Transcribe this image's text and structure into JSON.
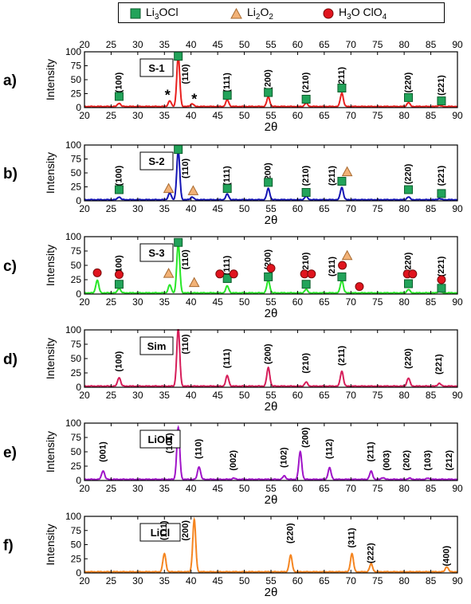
{
  "legend": {
    "items": [
      {
        "pre": "Li",
        "sub": "3",
        "post": "OCl",
        "marker": "square",
        "color": "#22a35a"
      },
      {
        "pre": "Li",
        "sub": "2",
        "post": "O",
        "sub2": "2",
        "marker": "triangle",
        "color": "#f2b277"
      },
      {
        "pre": "H",
        "sub": "3",
        "post": "O ClO",
        "sub2": "4",
        "marker": "circle",
        "color": "#e0141e"
      }
    ]
  },
  "chart_data": [
    {
      "type": "line",
      "panel_label": "a)",
      "sample_label": "S-1",
      "color": "#e8201e",
      "xlabel": "2θ",
      "ylabel": "Intensity",
      "xlim": [
        20,
        90
      ],
      "ylim": [
        0,
        100
      ],
      "xticks": [
        20,
        25,
        30,
        35,
        40,
        45,
        50,
        55,
        60,
        65,
        70,
        75,
        80,
        85,
        90
      ],
      "yticks": [
        0,
        25,
        50,
        75,
        100
      ],
      "top_axis": true,
      "peaks": [
        {
          "x": 26.5,
          "y": 6
        },
        {
          "x": 36.0,
          "y": 10
        },
        {
          "x": 37.6,
          "y": 90
        },
        {
          "x": 40.2,
          "y": 5
        },
        {
          "x": 46.8,
          "y": 12
        },
        {
          "x": 54.5,
          "y": 17
        },
        {
          "x": 61.6,
          "y": 6
        },
        {
          "x": 68.3,
          "y": 24
        },
        {
          "x": 80.8,
          "y": 7
        },
        {
          "x": 86.6,
          "y": 2
        }
      ],
      "labels": [
        {
          "x": 26.5,
          "y": 45,
          "text": "(100)"
        },
        {
          "x": 39.0,
          "y": 60,
          "text": "(110)"
        },
        {
          "x": 46.8,
          "y": 45,
          "text": "(111)"
        },
        {
          "x": 54.5,
          "y": 50,
          "text": "(200)"
        },
        {
          "x": 61.6,
          "y": 45,
          "text": "(210)"
        },
        {
          "x": 68.3,
          "y": 55,
          "text": "(211)"
        },
        {
          "x": 80.8,
          "y": 45,
          "text": "(220)"
        },
        {
          "x": 87.0,
          "y": 40,
          "text": "(221)"
        }
      ],
      "markers": [
        {
          "type": "square",
          "x": 26.5,
          "y": 20
        },
        {
          "type": "square",
          "x": 37.6,
          "y": 92
        },
        {
          "type": "square",
          "x": 46.8,
          "y": 22
        },
        {
          "type": "square",
          "x": 54.5,
          "y": 27
        },
        {
          "type": "square",
          "x": 61.6,
          "y": 15
        },
        {
          "type": "square",
          "x": 68.3,
          "y": 35
        },
        {
          "type": "square",
          "x": 80.8,
          "y": 18
        },
        {
          "type": "square",
          "x": 87.0,
          "y": 12
        }
      ],
      "annotations": [
        {
          "x": 35.6,
          "y": 22,
          "text": "*"
        },
        {
          "x": 40.6,
          "y": 15,
          "text": "*"
        }
      ]
    },
    {
      "type": "line",
      "panel_label": "b)",
      "sample_label": "S-2",
      "color": "#1414b4",
      "xlabel": "2θ",
      "ylabel": "Intensity",
      "xlim": [
        20,
        90
      ],
      "ylim": [
        0,
        100
      ],
      "xticks": [
        20,
        25,
        30,
        35,
        40,
        45,
        50,
        55,
        60,
        65,
        70,
        75,
        80,
        85,
        90
      ],
      "yticks": [
        0,
        25,
        50,
        75,
        100
      ],
      "top_axis": false,
      "peaks": [
        {
          "x": 26.5,
          "y": 5
        },
        {
          "x": 36.0,
          "y": 12
        },
        {
          "x": 37.6,
          "y": 88
        },
        {
          "x": 40.2,
          "y": 5
        },
        {
          "x": 46.8,
          "y": 10
        },
        {
          "x": 54.5,
          "y": 20
        },
        {
          "x": 61.6,
          "y": 6
        },
        {
          "x": 68.3,
          "y": 22
        },
        {
          "x": 80.8,
          "y": 5
        },
        {
          "x": 86.6,
          "y": 2
        }
      ],
      "labels": [
        {
          "x": 26.5,
          "y": 45,
          "text": "(100)"
        },
        {
          "x": 39.0,
          "y": 58,
          "text": "(110)"
        },
        {
          "x": 46.8,
          "y": 45,
          "text": "(111)"
        },
        {
          "x": 54.5,
          "y": 50,
          "text": "(200)"
        },
        {
          "x": 61.6,
          "y": 45,
          "text": "(210)"
        },
        {
          "x": 66.5,
          "y": 45,
          "text": "(211)"
        },
        {
          "x": 80.8,
          "y": 48,
          "text": "(220)"
        },
        {
          "x": 87.0,
          "y": 45,
          "text": "(221)"
        }
      ],
      "markers": [
        {
          "type": "square",
          "x": 26.5,
          "y": 20
        },
        {
          "type": "square",
          "x": 37.6,
          "y": 92
        },
        {
          "type": "square",
          "x": 46.8,
          "y": 22
        },
        {
          "type": "square",
          "x": 54.5,
          "y": 33
        },
        {
          "type": "square",
          "x": 61.6,
          "y": 15
        },
        {
          "type": "square",
          "x": 68.3,
          "y": 35
        },
        {
          "type": "square",
          "x": 80.8,
          "y": 20
        },
        {
          "type": "square",
          "x": 87.0,
          "y": 13
        },
        {
          "type": "triangle",
          "x": 35.8,
          "y": 22
        },
        {
          "type": "triangle",
          "x": 40.4,
          "y": 18
        },
        {
          "type": "triangle",
          "x": 69.3,
          "y": 52
        }
      ]
    },
    {
      "type": "line",
      "panel_label": "c)",
      "sample_label": "S-3",
      "color": "#28e628",
      "xlabel": "2θ",
      "ylabel": "Intensity",
      "xlim": [
        20,
        90
      ],
      "ylim": [
        0,
        100
      ],
      "xticks": [
        20,
        25,
        30,
        35,
        40,
        45,
        50,
        55,
        60,
        65,
        70,
        75,
        80,
        85,
        90
      ],
      "yticks": [
        0,
        25,
        50,
        75,
        100
      ],
      "top_axis": false,
      "peaks": [
        {
          "x": 22.4,
          "y": 22
        },
        {
          "x": 26.5,
          "y": 8
        },
        {
          "x": 36.0,
          "y": 14
        },
        {
          "x": 37.6,
          "y": 86
        },
        {
          "x": 46.8,
          "y": 12
        },
        {
          "x": 54.5,
          "y": 22
        },
        {
          "x": 61.6,
          "y": 6
        },
        {
          "x": 68.3,
          "y": 22
        },
        {
          "x": 80.8,
          "y": 6
        },
        {
          "x": 86.6,
          "y": 3
        }
      ],
      "labels": [
        {
          "x": 26.5,
          "y": 50,
          "text": "(100)"
        },
        {
          "x": 39.0,
          "y": 60,
          "text": "(110)"
        },
        {
          "x": 46.8,
          "y": 50,
          "text": "(111)"
        },
        {
          "x": 54.5,
          "y": 60,
          "text": "(200)"
        },
        {
          "x": 61.6,
          "y": 55,
          "text": "(210)"
        },
        {
          "x": 66.5,
          "y": 48,
          "text": "(211)"
        },
        {
          "x": 80.8,
          "y": 55,
          "text": "(220)"
        },
        {
          "x": 87.0,
          "y": 48,
          "text": "(221)"
        }
      ],
      "markers": [
        {
          "type": "square",
          "x": 26.5,
          "y": 17
        },
        {
          "type": "square",
          "x": 37.6,
          "y": 90
        },
        {
          "type": "square",
          "x": 46.8,
          "y": 27
        },
        {
          "type": "square",
          "x": 54.5,
          "y": 30
        },
        {
          "type": "square",
          "x": 61.6,
          "y": 17
        },
        {
          "type": "square",
          "x": 68.3,
          "y": 30
        },
        {
          "type": "square",
          "x": 80.8,
          "y": 18
        },
        {
          "type": "square",
          "x": 87.0,
          "y": 10
        },
        {
          "type": "circle",
          "x": 22.4,
          "y": 37
        },
        {
          "type": "circle",
          "x": 26.5,
          "y": 34
        },
        {
          "type": "circle",
          "x": 45.4,
          "y": 35
        },
        {
          "type": "circle",
          "x": 48.0,
          "y": 35
        },
        {
          "type": "circle",
          "x": 55.0,
          "y": 45
        },
        {
          "type": "circle",
          "x": 61.3,
          "y": 35
        },
        {
          "type": "circle",
          "x": 62.6,
          "y": 35
        },
        {
          "type": "circle",
          "x": 68.4,
          "y": 50
        },
        {
          "type": "circle",
          "x": 71.6,
          "y": 13
        },
        {
          "type": "circle",
          "x": 80.6,
          "y": 35
        },
        {
          "type": "circle",
          "x": 81.6,
          "y": 35
        },
        {
          "type": "circle",
          "x": 87.0,
          "y": 25
        },
        {
          "type": "triangle",
          "x": 35.8,
          "y": 36
        },
        {
          "type": "triangle",
          "x": 40.6,
          "y": 20
        },
        {
          "type": "triangle",
          "x": 69.3,
          "y": 67
        }
      ]
    },
    {
      "type": "line",
      "panel_label": "d)",
      "sample_label": "Sim",
      "color": "#d61e5a",
      "xlabel": "2θ",
      "ylabel": "Intensity",
      "xlim": [
        20,
        90
      ],
      "ylim": [
        0,
        100
      ],
      "xticks": [
        20,
        25,
        30,
        35,
        40,
        45,
        50,
        55,
        60,
        65,
        70,
        75,
        80,
        85,
        90
      ],
      "yticks": [
        0,
        25,
        50,
        75,
        100
      ],
      "top_axis": false,
      "peaks": [
        {
          "x": 26.5,
          "y": 15
        },
        {
          "x": 37.6,
          "y": 100
        },
        {
          "x": 46.8,
          "y": 18
        },
        {
          "x": 54.5,
          "y": 32
        },
        {
          "x": 61.6,
          "y": 7
        },
        {
          "x": 68.3,
          "y": 26
        },
        {
          "x": 80.8,
          "y": 14
        },
        {
          "x": 86.6,
          "y": 5
        }
      ],
      "labels": [
        {
          "x": 26.5,
          "y": 45,
          "text": "(100)"
        },
        {
          "x": 39.0,
          "y": 75,
          "text": "(110)"
        },
        {
          "x": 46.8,
          "y": 50,
          "text": "(111)"
        },
        {
          "x": 54.5,
          "y": 58,
          "text": "(200)"
        },
        {
          "x": 61.6,
          "y": 42,
          "text": "(210)"
        },
        {
          "x": 68.3,
          "y": 55,
          "text": "(211)"
        },
        {
          "x": 80.8,
          "y": 50,
          "text": "(220)"
        },
        {
          "x": 86.6,
          "y": 40,
          "text": "(221)"
        }
      ],
      "markers": []
    },
    {
      "type": "line",
      "panel_label": "e)",
      "sample_label": "LiOH",
      "color": "#a014c8",
      "xlabel": "2θ",
      "ylabel": "Intensity",
      "xlim": [
        20,
        90
      ],
      "ylim": [
        0,
        100
      ],
      "xticks": [
        20,
        25,
        30,
        35,
        40,
        45,
        50,
        55,
        60,
        65,
        70,
        75,
        80,
        85,
        90
      ],
      "yticks": [
        0,
        25,
        50,
        75,
        100
      ],
      "top_axis": false,
      "peaks": [
        {
          "x": 23.5,
          "y": 15
        },
        {
          "x": 37.6,
          "y": 90
        },
        {
          "x": 41.5,
          "y": 22
        },
        {
          "x": 48.0,
          "y": 2
        },
        {
          "x": 57.5,
          "y": 6
        },
        {
          "x": 60.5,
          "y": 48
        },
        {
          "x": 66.0,
          "y": 20
        },
        {
          "x": 73.8,
          "y": 14
        },
        {
          "x": 76.0,
          "y": 3
        },
        {
          "x": 81.0,
          "y": 2
        },
        {
          "x": 84.5,
          "y": 2
        }
      ],
      "labels": [
        {
          "x": 23.5,
          "y": 50,
          "text": "(001)"
        },
        {
          "x": 36.0,
          "y": 65,
          "text": "(101)"
        },
        {
          "x": 41.5,
          "y": 55,
          "text": "(110)"
        },
        {
          "x": 48.0,
          "y": 35,
          "text": "(002)"
        },
        {
          "x": 57.5,
          "y": 40,
          "text": "(102)"
        },
        {
          "x": 61.5,
          "y": 75,
          "text": "(200)"
        },
        {
          "x": 66.0,
          "y": 55,
          "text": "(112)"
        },
        {
          "x": 73.8,
          "y": 50,
          "text": "(211)"
        },
        {
          "x": 76.8,
          "y": 35,
          "text": "(003)"
        },
        {
          "x": 80.5,
          "y": 35,
          "text": "(202)"
        },
        {
          "x": 84.5,
          "y": 35,
          "text": "(103)"
        },
        {
          "x": 88.5,
          "y": 35,
          "text": "(212)"
        }
      ],
      "markers": []
    },
    {
      "type": "line",
      "panel_label": "f)",
      "sample_label": "LiCl",
      "color": "#f58520",
      "xlabel": "2θ",
      "ylabel": "Intensity",
      "xlim": [
        20,
        90
      ],
      "ylim": [
        0,
        100
      ],
      "xticks": [
        20,
        25,
        30,
        35,
        40,
        45,
        50,
        55,
        60,
        65,
        70,
        75,
        80,
        85,
        90
      ],
      "yticks": [
        0,
        25,
        50,
        75,
        100
      ],
      "top_axis": false,
      "peaks": [
        {
          "x": 35.0,
          "y": 32
        },
        {
          "x": 40.6,
          "y": 92
        },
        {
          "x": 58.7,
          "y": 29
        },
        {
          "x": 70.2,
          "y": 32
        },
        {
          "x": 73.8,
          "y": 14
        },
        {
          "x": 88.0,
          "y": 9
        }
      ],
      "labels": [
        {
          "x": 35.0,
          "y": 75,
          "text": "(111)"
        },
        {
          "x": 39.0,
          "y": 75,
          "text": "(200)"
        },
        {
          "x": 58.7,
          "y": 70,
          "text": "(220)"
        },
        {
          "x": 70.2,
          "y": 62,
          "text": "(311)"
        },
        {
          "x": 73.8,
          "y": 35,
          "text": "(222)"
        },
        {
          "x": 88.0,
          "y": 30,
          "text": "(400)"
        }
      ],
      "markers": []
    }
  ]
}
